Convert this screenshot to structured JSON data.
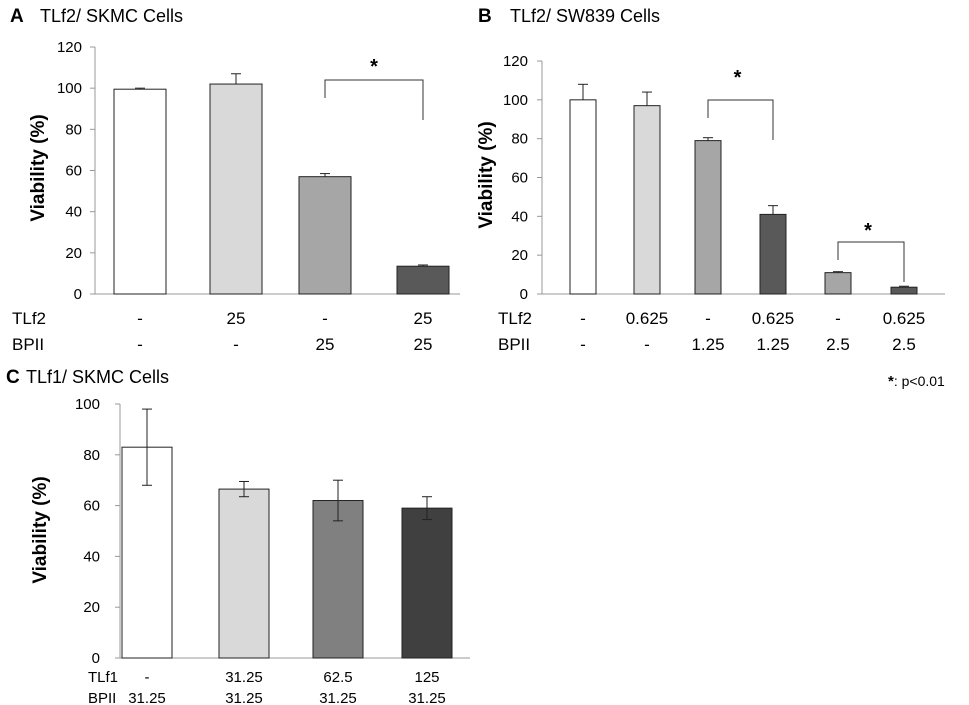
{
  "footnote": {
    "symbol": "*",
    "text": ": p<0.01"
  },
  "chart_data": [
    {
      "id": "A",
      "type": "bar",
      "panel_label": "A",
      "title": "TLf2/ SKMC Cells",
      "ylabel": "Viability (%)",
      "ylim": [
        0,
        120
      ],
      "yticks": [
        "0",
        "20",
        "40",
        "60",
        "80",
        "100",
        "120"
      ],
      "values": [
        99.5,
        102,
        57,
        13.5
      ],
      "errors": [
        0.5,
        5,
        1.5,
        0.6
      ],
      "colors": [
        "#ffffff",
        "#d9d9d9",
        "#a6a6a6",
        "#595959"
      ],
      "conditions": [
        {
          "label": "TLf2",
          "values": [
            "-",
            "25",
            "-",
            "25"
          ]
        },
        {
          "label": "BPII",
          "values": [
            "-",
            "-",
            "25",
            "25"
          ]
        }
      ],
      "significance": [
        {
          "from": 2,
          "to": 3,
          "label": "*"
        }
      ]
    },
    {
      "id": "B",
      "type": "bar",
      "panel_label": "B",
      "title": "TLf2/ SW839 Cells",
      "ylabel": "Viability (%)",
      "ylim": [
        0,
        120
      ],
      "yticks": [
        "0",
        "20",
        "40",
        "60",
        "80",
        "100",
        "120"
      ],
      "values": [
        100,
        97,
        79,
        41,
        11,
        3.5
      ],
      "errors": [
        8,
        7,
        1.5,
        4.5,
        0.5,
        0.5
      ],
      "colors": [
        "#ffffff",
        "#d9d9d9",
        "#a6a6a6",
        "#595959",
        "#a6a6a6",
        "#595959"
      ],
      "conditions": [
        {
          "label": "TLf2",
          "values": [
            "-",
            "0.625",
            "-",
            "0.625",
            "-",
            "0.625"
          ]
        },
        {
          "label": "BPII",
          "values": [
            "-",
            "-",
            "1.25",
            "1.25",
            "2.5",
            "2.5"
          ]
        }
      ],
      "significance": [
        {
          "from": 2,
          "to": 3,
          "label": "*"
        },
        {
          "from": 4,
          "to": 5,
          "label": "*"
        }
      ]
    },
    {
      "id": "C",
      "type": "bar",
      "panel_label": "C",
      "title": "TLf1/ SKMC Cells",
      "ylabel": "Viability (%)",
      "ylim": [
        0,
        100
      ],
      "yticks": [
        "0",
        "20",
        "40",
        "60",
        "80",
        "100"
      ],
      "values": [
        83,
        66.5,
        62,
        59
      ],
      "errors": [
        15,
        3,
        8,
        4.5
      ],
      "errors_both": true,
      "colors": [
        "#ffffff",
        "#d9d9d9",
        "#808080",
        "#404040"
      ],
      "conditions": [
        {
          "label": "TLf1",
          "values": [
            "-",
            "31.25",
            "62.5",
            "125"
          ]
        },
        {
          "label": "BPII",
          "values": [
            "31.25",
            "31.25",
            "31.25",
            "31.25"
          ]
        }
      ],
      "significance": []
    }
  ]
}
